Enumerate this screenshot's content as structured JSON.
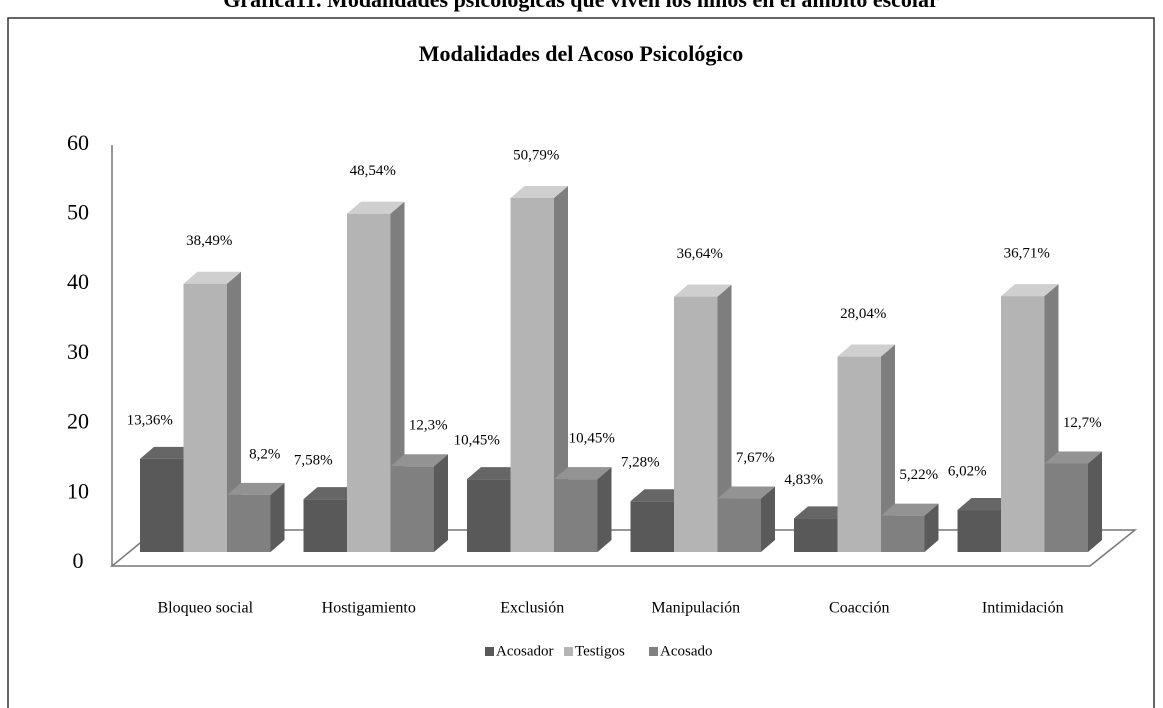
{
  "caption": "Gráfica11. Modalidades psicológicas que viven los niños en el ámbito escolar",
  "chart_data": {
    "type": "bar3d",
    "title": "Modalidades del  Acoso Psicológico",
    "categories": [
      "Bloqueo social",
      "Hostigamiento",
      "Exclusión",
      "Manipulación",
      "Coacción",
      "Intimidación"
    ],
    "series": [
      {
        "name": "Acosador",
        "color": "#595959",
        "values": [
          13.36,
          7.58,
          10.45,
          7.28,
          4.83,
          6.02
        ],
        "value_labels": [
          "13,36%",
          "7,58%",
          "10,45%",
          "7,28%",
          "4,83%",
          "6,02%"
        ]
      },
      {
        "name": "Testigos",
        "color": "#b4b4b4",
        "values": [
          38.49,
          48.54,
          50.79,
          36.64,
          28.04,
          36.71
        ],
        "value_labels": [
          "38,49%",
          "48,54%",
          "50,79%",
          "36,64%",
          "28,04%",
          "36,71%"
        ]
      },
      {
        "name": "Acosado",
        "color": "#808080",
        "values": [
          8.2,
          12.3,
          10.45,
          7.67,
          5.22,
          12.7
        ],
        "value_labels": [
          "8,2%",
          "12,3%",
          "10,45%",
          "7,67%",
          "5,22%",
          "12,7%"
        ]
      }
    ],
    "ylim": [
      0,
      60
    ],
    "yticks": [
      0,
      10,
      20,
      30,
      40,
      50,
      60
    ]
  }
}
